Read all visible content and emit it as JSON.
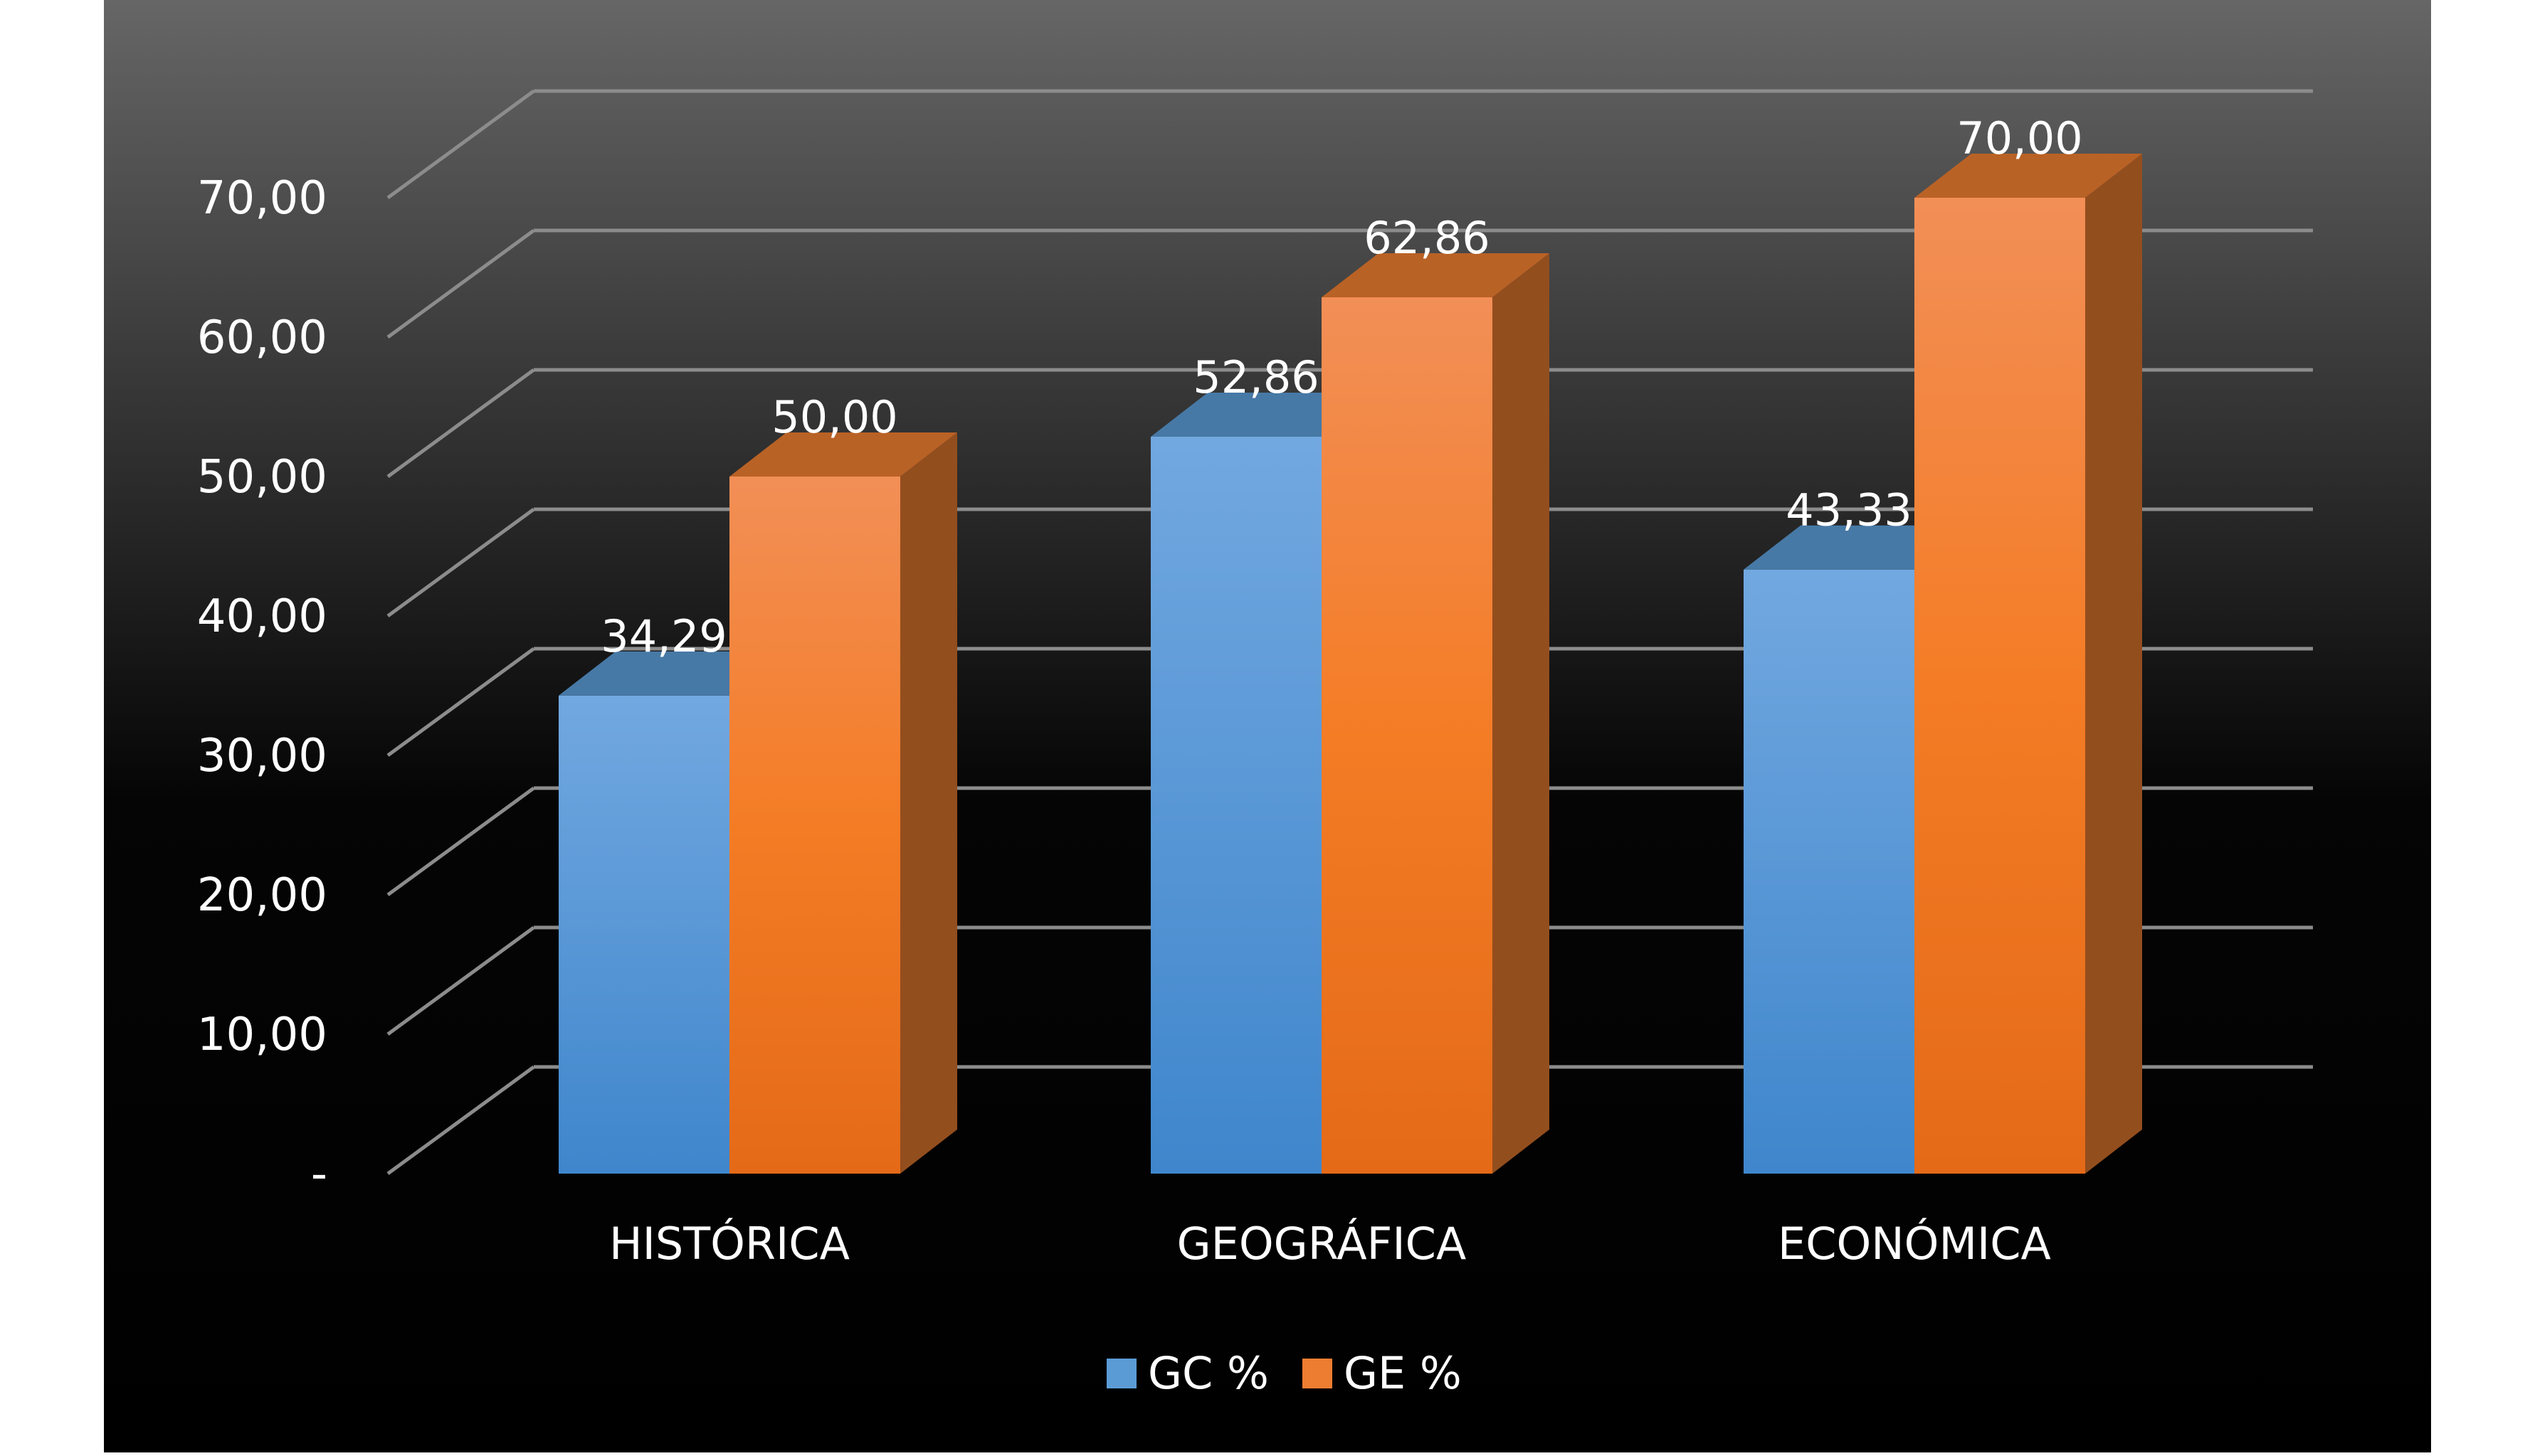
{
  "chart_data": {
    "type": "bar",
    "style": "3d-clustered-column",
    "title": "",
    "xlabel": "",
    "ylabel": "",
    "categories": [
      "HISTÓRICA",
      "GEOGRÁFICA",
      "ECONÓMICA"
    ],
    "series": [
      {
        "name": "GC %",
        "values": [
          34.29,
          52.86,
          43.33
        ],
        "labels": [
          "34,29",
          "52,86",
          "43,33"
        ],
        "color": "#5B9BD5"
      },
      {
        "name": "GE %",
        "values": [
          50.0,
          62.86,
          70.0
        ],
        "labels": [
          "50,00",
          "62,86",
          "70,00"
        ],
        "color": "#ED7D31"
      }
    ],
    "ylim": [
      0,
      70
    ],
    "yticks": [
      0,
      10,
      20,
      30,
      40,
      50,
      60,
      70
    ],
    "ytick_labels": [
      "-",
      "10,00",
      "20,00",
      "30,00",
      "40,00",
      "50,00",
      "60,00",
      "70,00"
    ],
    "grid": true,
    "legend": "bottom-center",
    "background": "#000000",
    "text_color": "#ffffff",
    "gridline_color": "#8c8c8c"
  }
}
